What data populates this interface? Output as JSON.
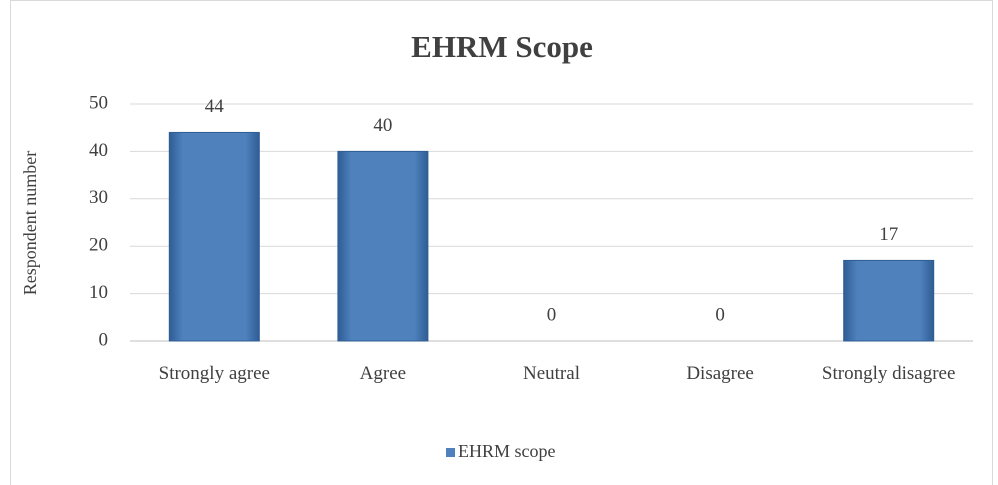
{
  "chart_data": {
    "type": "bar",
    "title": "EHRM Scope",
    "y_label": "Respondent number",
    "categories": [
      "Strongly agree",
      "Agree",
      "Neutral",
      "Disagree",
      "Strongly disagree"
    ],
    "series": [
      {
        "name": "EHRM scope",
        "color": "#4f81bd",
        "values": [
          44,
          40,
          0,
          0,
          17
        ]
      }
    ],
    "ylim": [
      0,
      50
    ],
    "yticks": [
      0,
      10,
      20,
      30,
      40,
      50
    ],
    "grid": true,
    "legend": "bottom"
  }
}
